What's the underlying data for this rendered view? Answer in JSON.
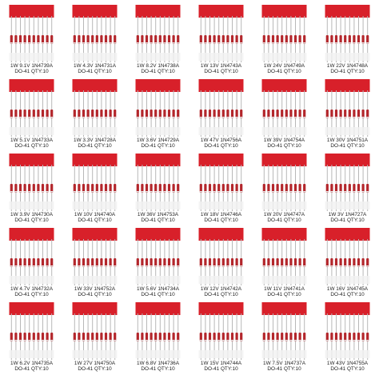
{
  "cells": [
    {
      "line1": "1W 9.1V 1N4739A",
      "line2": "DO-41 QTY:10"
    },
    {
      "line1": "1W 4.3V 1N4731A",
      "line2": "DO-41 QTY:10"
    },
    {
      "line1": "1W 8.2V 1N4738A",
      "line2": "DO-41 QTY:10"
    },
    {
      "line1": "1W 13V 1N4743A",
      "line2": "DO-41 QTY:10"
    },
    {
      "line1": "1W 24V 1N4749A",
      "line2": "DO-41 QTY:10"
    },
    {
      "line1": "1W 22V 1N4748A",
      "line2": "DO-41 QTY:10"
    },
    {
      "line1": "1W 5.1V 1N4733A",
      "line2": "DO-41 QTY:10"
    },
    {
      "line1": "1W 3.3V 1N4728A",
      "line2": "DO-41 QTY:10"
    },
    {
      "line1": "1W 3.6V 1N4729A",
      "line2": "DO-41 QTY:10"
    },
    {
      "line1": "1W 47V 1N4756A",
      "line2": "DO-41 QTY:10"
    },
    {
      "line1": "1W 39V 1N4754A",
      "line2": "DO-41 QTY:10"
    },
    {
      "line1": "1W 30V 1N4751A",
      "line2": "DO-41 QTY:10"
    },
    {
      "line1": "1W 3.9V 1N4730A",
      "line2": "DO-41 QTY:10"
    },
    {
      "line1": "1W 10V 1N4740A",
      "line2": "DO-41 QTY:10"
    },
    {
      "line1": "1W 36V 1N4753A",
      "line2": "DO-41 QTY:10"
    },
    {
      "line1": "1W 18V 1N4746A",
      "line2": "DO-41 QTY:10"
    },
    {
      "line1": "1W 20V 1N4747A",
      "line2": "DO-41 QTY:10"
    },
    {
      "line1": "1W 3V 1N4727A",
      "line2": "DO-41 QTY:10"
    },
    {
      "line1": "1W 4.7V 1N4732A",
      "line2": "DO-41 QTY:10"
    },
    {
      "line1": "1W 33V 1N4752A",
      "line2": "DO-41 QTY:10"
    },
    {
      "line1": "1W 5.6V 1N4734A",
      "line2": "DO-41 QTY:10"
    },
    {
      "line1": "1W 12V 1N4742A",
      "line2": "DO-41 QTY:10"
    },
    {
      "line1": "1W 11V 1N4741A",
      "line2": "DO-41 QTY:10"
    },
    {
      "line1": "1W 16V 1N4745A",
      "line2": "DO-41 QTY:10"
    },
    {
      "line1": "1W 6.2V 1N4735A",
      "line2": "DO-41 QTY:10"
    },
    {
      "line1": "1W 27V 1N4750A",
      "line2": "DO-41 QTY:10"
    },
    {
      "line1": "1W 6.8V 1N4736A",
      "line2": "DO-41 QTY:10"
    },
    {
      "line1": "1W 15V 1N4744A",
      "line2": "DO-41 QTY:10"
    },
    {
      "line1": "1W 7.5V 1N4737A",
      "line2": "DO-41 QTY:10"
    },
    {
      "line1": "1W 43V 1N4755A",
      "line2": "DO-41 QTY:10"
    }
  ]
}
